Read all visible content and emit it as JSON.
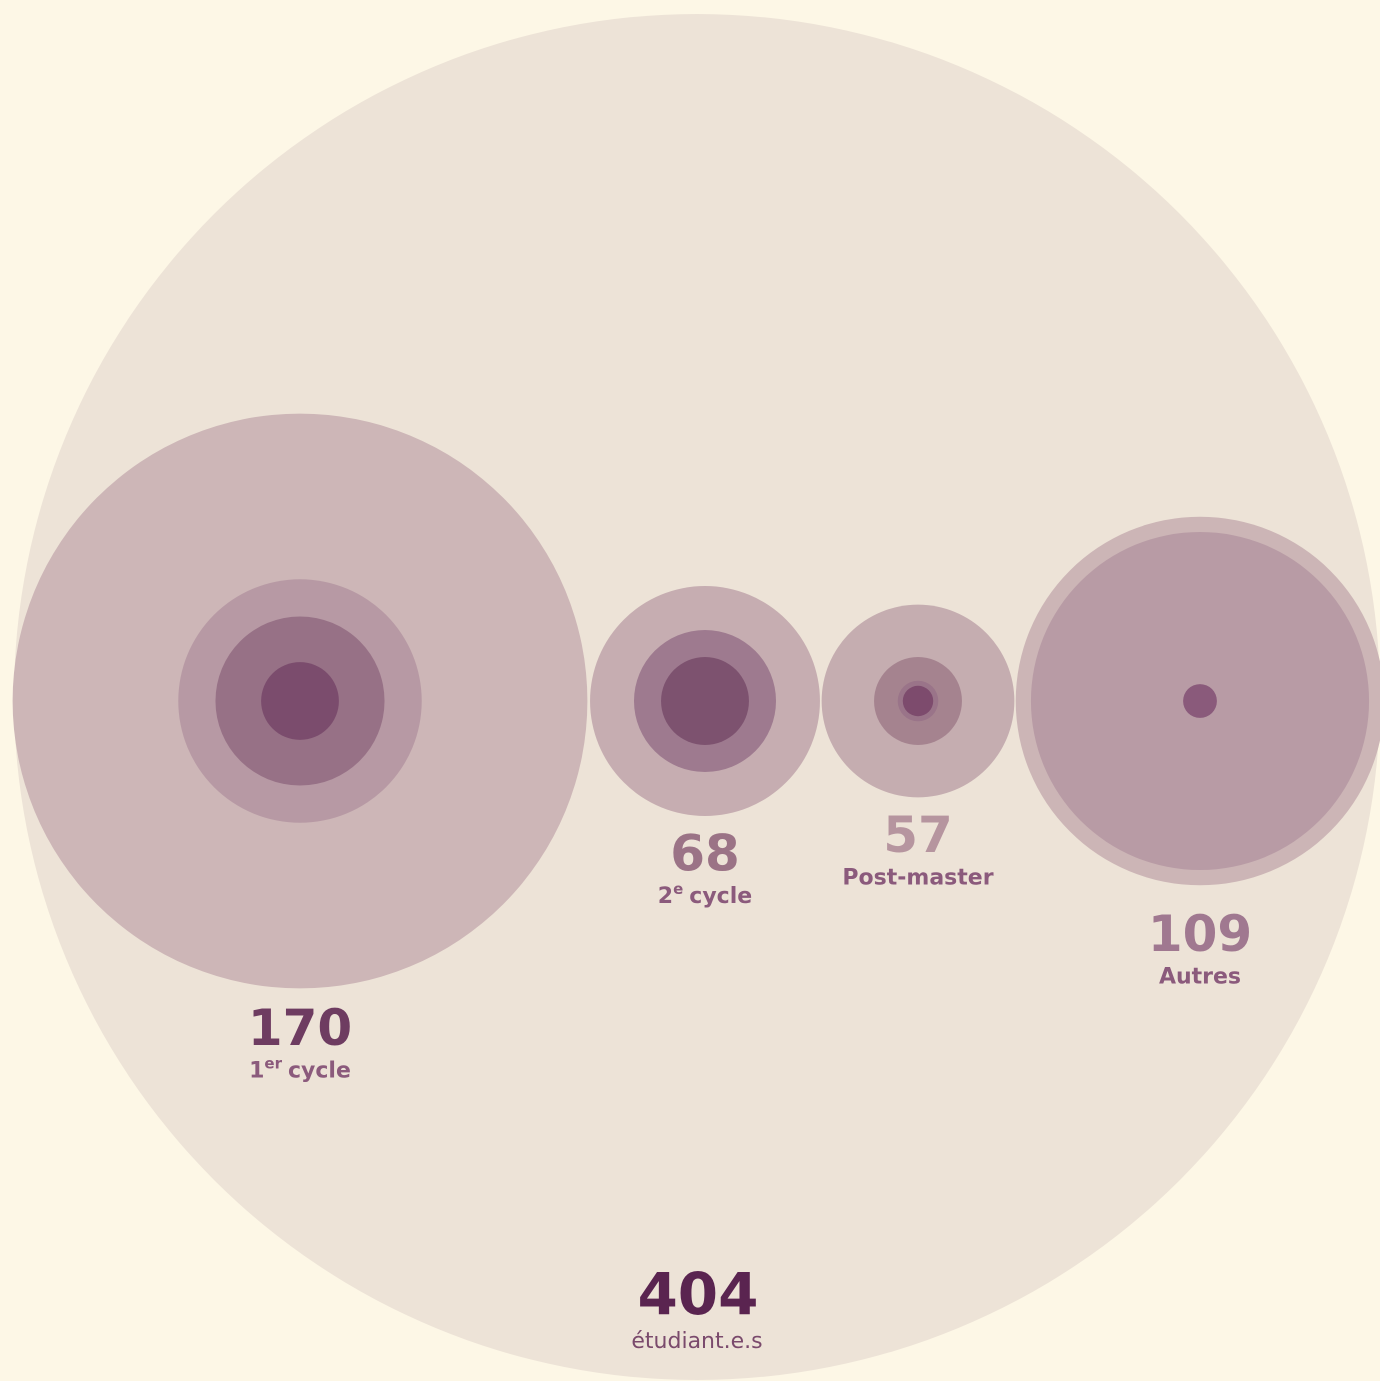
{
  "chart_data": {
    "type": "nested-circles",
    "total": {
      "value": 404,
      "label": "étudiant.e.s",
      "color": "#ede3d7",
      "text_color": "#5a2450"
    },
    "groups": [
      {
        "value": 170,
        "label": {
          "base": "1",
          "sup": "er",
          "rest": "cycle"
        },
        "color": "#cdb6b7",
        "text_color": "#6e3c61",
        "rings": [
          {
            "value": 72,
            "color": "#b799a4"
          },
          {
            "value": 50,
            "color": "#977186"
          },
          {
            "value": 23,
            "color": "#7b4c6d"
          }
        ]
      },
      {
        "value": 68,
        "label": {
          "base": "2",
          "sup": "e",
          "rest": "cycle"
        },
        "color": "#c6adb1",
        "text_color": "#9b7386",
        "rings": [
          {
            "value": 42,
            "color": "#9e7a8f"
          },
          {
            "value": 26,
            "color": "#7d526f"
          }
        ]
      },
      {
        "value": 57,
        "label": {
          "base": "Post-master"
        },
        "color": "#c5adb0",
        "text_color": "#b6959f",
        "rings": [
          {
            "value": 26,
            "color": "#a5838f"
          },
          {
            "value": 12,
            "color": "#9a7489"
          },
          {
            "value": 9,
            "color": "#7d4b6d"
          }
        ]
      },
      {
        "value": 109,
        "label": {
          "base": "Autres"
        },
        "color": "#ccb5b6",
        "text_color": "#a07890",
        "rings": [
          {
            "value": 100,
            "color": "#b89ba5"
          },
          {
            "value": 10,
            "color": "#8a5a7b"
          }
        ]
      }
    ]
  }
}
